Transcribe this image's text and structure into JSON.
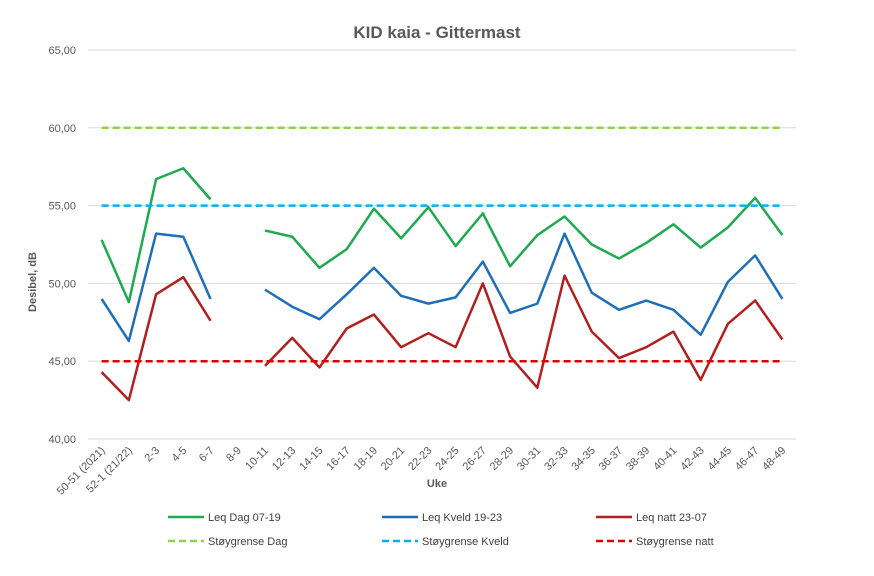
{
  "chart_data": {
    "type": "line",
    "title": "KID kaia - Gittermast",
    "xlabel": "Uke",
    "ylabel": "Desibel, dB",
    "ylim": [
      40,
      65
    ],
    "yticks": [
      "40,00",
      "45,00",
      "50,00",
      "55,00",
      "60,00",
      "65,00"
    ],
    "grid": true,
    "legend_position": "bottom",
    "categories": [
      "50-51 (2021)",
      "52-1 (21/22)",
      "2-3",
      "4-5",
      "6-7",
      "8-9",
      "10-11",
      "12-13",
      "14-15",
      "16-17",
      "18-19",
      "20-21",
      "22-23",
      "24-25",
      "26-27",
      "28-29",
      "30-31",
      "32-33",
      "34-35",
      "36-37",
      "38-39",
      "40-41",
      "42-43",
      "44-45",
      "46-47",
      "48-49"
    ],
    "series": [
      {
        "name": "Leq Dag 07-19",
        "color": "#1eaa50",
        "style": "solid",
        "values": [
          52.8,
          48.8,
          56.7,
          57.4,
          55.4,
          null,
          53.4,
          53.0,
          51.0,
          52.2,
          54.8,
          52.9,
          54.9,
          52.4,
          54.5,
          51.1,
          53.1,
          54.3,
          52.5,
          51.6,
          52.6,
          53.8,
          52.3,
          53.6,
          55.5,
          53.1
        ]
      },
      {
        "name": "Leq Kveld 19-23",
        "color": "#1f6fb8",
        "style": "solid",
        "values": [
          49.0,
          46.3,
          53.2,
          53.0,
          49.0,
          null,
          49.6,
          48.5,
          47.7,
          49.3,
          51.0,
          49.2,
          48.7,
          49.1,
          51.4,
          48.1,
          48.7,
          53.2,
          49.4,
          48.3,
          48.9,
          48.3,
          46.7,
          50.1,
          51.8,
          49.0
        ]
      },
      {
        "name": "Leq natt 23-07",
        "color": "#b31f1f",
        "style": "solid",
        "values": [
          44.3,
          42.5,
          49.3,
          50.4,
          47.6,
          null,
          44.7,
          46.5,
          44.6,
          47.1,
          48.0,
          45.9,
          46.8,
          45.9,
          50.0,
          45.3,
          43.3,
          50.5,
          46.9,
          45.2,
          45.9,
          46.9,
          43.8,
          47.4,
          48.9,
          46.4
        ]
      },
      {
        "name": "Støygrense Dag",
        "color": "#92d050",
        "style": "dashed",
        "constant": 60
      },
      {
        "name": "Støygrense Kveld",
        "color": "#00b0f0",
        "style": "dashed",
        "constant": 55
      },
      {
        "name": "Støygrense natt",
        "color": "#e00000",
        "style": "dashed",
        "constant": 45
      }
    ]
  }
}
